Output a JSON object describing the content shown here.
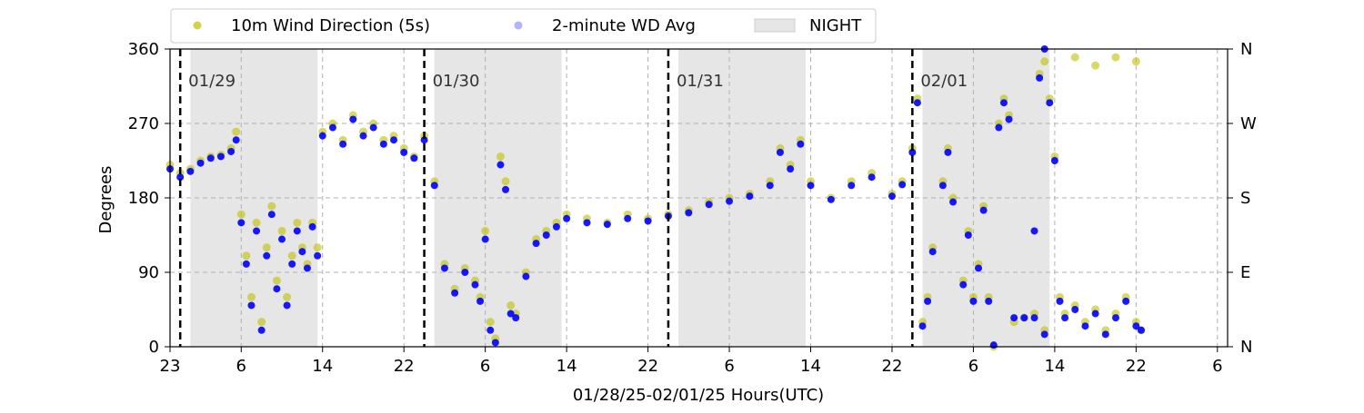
{
  "chart_data": {
    "type": "scatter",
    "xlabel": "01/28/25-02/01/25  Hours(UTC)",
    "ylabel": "Degrees",
    "x_range_hours": [
      -1,
      103
    ],
    "ylim": [
      0,
      360
    ],
    "x_ticks": [
      {
        "hour": -1,
        "label": "23"
      },
      {
        "hour": 6,
        "label": "6"
      },
      {
        "hour": 14,
        "label": "14"
      },
      {
        "hour": 22,
        "label": "22"
      },
      {
        "hour": 30,
        "label": "6"
      },
      {
        "hour": 38,
        "label": "14"
      },
      {
        "hour": 46,
        "label": "22"
      },
      {
        "hour": 54,
        "label": "6"
      },
      {
        "hour": 62,
        "label": "14"
      },
      {
        "hour": 70,
        "label": "22"
      },
      {
        "hour": 78,
        "label": "6"
      },
      {
        "hour": 86,
        "label": "14"
      },
      {
        "hour": 94,
        "label": "22"
      },
      {
        "hour": 102,
        "label": "6"
      }
    ],
    "y_ticks": [
      0,
      90,
      180,
      270,
      360
    ],
    "y2_ticks": [
      {
        "value": 0,
        "label": "N"
      },
      {
        "value": 90,
        "label": "E"
      },
      {
        "value": 180,
        "label": "S"
      },
      {
        "value": 270,
        "label": "W"
      },
      {
        "value": 360,
        "label": "N"
      }
    ],
    "grid": true,
    "legend": {
      "position": "top-left, above plot",
      "items": [
        {
          "label": "10m Wind Direction (5s)",
          "kind": "marker",
          "color": "#bfbf00"
        },
        {
          "label": "2-minute WD Avg",
          "kind": "marker",
          "color": "#0000ff"
        },
        {
          "label": "NIGHT",
          "kind": "patch",
          "color": "#e6e6e6"
        }
      ]
    },
    "day_markers": [
      {
        "hour": 0,
        "label": "01/29"
      },
      {
        "hour": 24,
        "label": "01/30"
      },
      {
        "hour": 48,
        "label": "01/31"
      },
      {
        "hour": 72,
        "label": "02/01"
      }
    ],
    "night_spans_hours": [
      [
        1,
        13.5
      ],
      [
        25,
        37.5
      ],
      [
        49,
        61.5
      ],
      [
        73,
        85.5
      ]
    ],
    "series": [
      {
        "name": "10m Wind Direction (5s)",
        "color": "#bfbf00",
        "points": [
          [
            -1,
            220
          ],
          [
            0,
            210
          ],
          [
            1,
            215
          ],
          [
            2,
            225
          ],
          [
            3,
            230
          ],
          [
            4,
            232
          ],
          [
            5,
            240
          ],
          [
            5.5,
            260
          ],
          [
            6,
            160
          ],
          [
            6.5,
            110
          ],
          [
            7,
            60
          ],
          [
            7.5,
            150
          ],
          [
            8,
            30
          ],
          [
            8.5,
            120
          ],
          [
            9,
            170
          ],
          [
            9.5,
            80
          ],
          [
            10,
            140
          ],
          [
            10.5,
            60
          ],
          [
            11,
            110
          ],
          [
            11.5,
            150
          ],
          [
            12,
            120
          ],
          [
            12.5,
            100
          ],
          [
            13,
            150
          ],
          [
            13.5,
            120
          ],
          [
            14,
            260
          ],
          [
            15,
            270
          ],
          [
            16,
            250
          ],
          [
            17,
            280
          ],
          [
            18,
            260
          ],
          [
            19,
            270
          ],
          [
            20,
            250
          ],
          [
            21,
            255
          ],
          [
            22,
            240
          ],
          [
            23,
            230
          ],
          [
            24,
            255
          ],
          [
            25,
            200
          ],
          [
            26,
            100
          ],
          [
            27,
            70
          ],
          [
            28,
            95
          ],
          [
            29,
            80
          ],
          [
            29.5,
            60
          ],
          [
            30,
            140
          ],
          [
            30.5,
            30
          ],
          [
            31,
            10
          ],
          [
            31.5,
            230
          ],
          [
            32,
            200
          ],
          [
            32.5,
            50
          ],
          [
            33,
            40
          ],
          [
            34,
            90
          ],
          [
            35,
            130
          ],
          [
            36,
            140
          ],
          [
            37,
            150
          ],
          [
            38,
            160
          ],
          [
            40,
            155
          ],
          [
            42,
            150
          ],
          [
            44,
            160
          ],
          [
            46,
            155
          ],
          [
            48,
            160
          ],
          [
            50,
            165
          ],
          [
            52,
            175
          ],
          [
            54,
            180
          ],
          [
            56,
            185
          ],
          [
            58,
            200
          ],
          [
            59,
            240
          ],
          [
            60,
            220
          ],
          [
            61,
            250
          ],
          [
            62,
            200
          ],
          [
            64,
            180
          ],
          [
            66,
            200
          ],
          [
            68,
            210
          ],
          [
            70,
            185
          ],
          [
            71,
            200
          ],
          [
            72,
            240
          ],
          [
            72.5,
            300
          ],
          [
            73,
            30
          ],
          [
            73.5,
            60
          ],
          [
            74,
            120
          ],
          [
            75,
            200
          ],
          [
            75.5,
            240
          ],
          [
            76,
            180
          ],
          [
            77,
            80
          ],
          [
            77.5,
            140
          ],
          [
            78,
            60
          ],
          [
            78.5,
            100
          ],
          [
            79,
            170
          ],
          [
            79.5,
            60
          ],
          [
            80,
            0
          ],
          [
            80.5,
            270
          ],
          [
            81,
            300
          ],
          [
            81.5,
            280
          ],
          [
            82,
            30
          ],
          [
            83,
            35
          ],
          [
            84,
            40
          ],
          [
            84.5,
            330
          ],
          [
            85,
            20
          ],
          [
            85.5,
            300
          ],
          [
            86,
            230
          ],
          [
            86.5,
            60
          ],
          [
            87,
            40
          ],
          [
            88,
            50
          ],
          [
            89,
            30
          ],
          [
            90,
            45
          ],
          [
            91,
            20
          ],
          [
            92,
            40
          ],
          [
            93,
            60
          ],
          [
            94,
            30
          ],
          [
            94.5,
            20
          ],
          [
            85,
            345
          ],
          [
            88,
            350
          ],
          [
            90,
            340
          ],
          [
            92,
            350
          ],
          [
            94,
            345
          ]
        ]
      },
      {
        "name": "2-minute WD Avg",
        "color": "#0000ff",
        "points": [
          [
            -1,
            215
          ],
          [
            0,
            205
          ],
          [
            1,
            212
          ],
          [
            2,
            222
          ],
          [
            3,
            228
          ],
          [
            4,
            230
          ],
          [
            5,
            236
          ],
          [
            5.5,
            250
          ],
          [
            6,
            150
          ],
          [
            6.5,
            100
          ],
          [
            7,
            50
          ],
          [
            7.5,
            140
          ],
          [
            8,
            20
          ],
          [
            8.5,
            110
          ],
          [
            9,
            160
          ],
          [
            9.5,
            70
          ],
          [
            10,
            130
          ],
          [
            10.5,
            50
          ],
          [
            11,
            100
          ],
          [
            11.5,
            140
          ],
          [
            12,
            115
          ],
          [
            12.5,
            95
          ],
          [
            13,
            145
          ],
          [
            13.5,
            110
          ],
          [
            14,
            255
          ],
          [
            15,
            265
          ],
          [
            16,
            245
          ],
          [
            17,
            275
          ],
          [
            18,
            255
          ],
          [
            19,
            265
          ],
          [
            20,
            245
          ],
          [
            21,
            250
          ],
          [
            22,
            235
          ],
          [
            23,
            228
          ],
          [
            24,
            250
          ],
          [
            25,
            195
          ],
          [
            26,
            95
          ],
          [
            27,
            65
          ],
          [
            28,
            90
          ],
          [
            29,
            75
          ],
          [
            29.5,
            55
          ],
          [
            30,
            130
          ],
          [
            30.5,
            20
          ],
          [
            31,
            5
          ],
          [
            31.5,
            220
          ],
          [
            32,
            190
          ],
          [
            32.5,
            40
          ],
          [
            33,
            35
          ],
          [
            34,
            85
          ],
          [
            35,
            125
          ],
          [
            36,
            135
          ],
          [
            37,
            145
          ],
          [
            38,
            155
          ],
          [
            40,
            150
          ],
          [
            42,
            148
          ],
          [
            44,
            155
          ],
          [
            46,
            152
          ],
          [
            48,
            158
          ],
          [
            50,
            162
          ],
          [
            52,
            172
          ],
          [
            54,
            176
          ],
          [
            56,
            182
          ],
          [
            58,
            195
          ],
          [
            59,
            235
          ],
          [
            60,
            215
          ],
          [
            61,
            245
          ],
          [
            62,
            195
          ],
          [
            64,
            178
          ],
          [
            66,
            195
          ],
          [
            68,
            205
          ],
          [
            70,
            182
          ],
          [
            71,
            196
          ],
          [
            72,
            235
          ],
          [
            72.5,
            295
          ],
          [
            73,
            25
          ],
          [
            73.5,
            55
          ],
          [
            74,
            115
          ],
          [
            75,
            195
          ],
          [
            75.5,
            235
          ],
          [
            76,
            175
          ],
          [
            77,
            75
          ],
          [
            77.5,
            135
          ],
          [
            78,
            55
          ],
          [
            78.5,
            95
          ],
          [
            79,
            165
          ],
          [
            79.5,
            55
          ],
          [
            80,
            2
          ],
          [
            80.5,
            265
          ],
          [
            81,
            295
          ],
          [
            81.5,
            275
          ],
          [
            82,
            35
          ],
          [
            83,
            35
          ],
          [
            84,
            35
          ],
          [
            84.5,
            325
          ],
          [
            85,
            15
          ],
          [
            85.5,
            295
          ],
          [
            86,
            225
          ],
          [
            86.5,
            55
          ],
          [
            87,
            35
          ],
          [
            88,
            45
          ],
          [
            89,
            25
          ],
          [
            90,
            40
          ],
          [
            91,
            15
          ],
          [
            92,
            35
          ],
          [
            93,
            55
          ],
          [
            94,
            25
          ],
          [
            94.5,
            20
          ],
          [
            84,
            140
          ],
          [
            85,
            360
          ]
        ]
      }
    ]
  }
}
